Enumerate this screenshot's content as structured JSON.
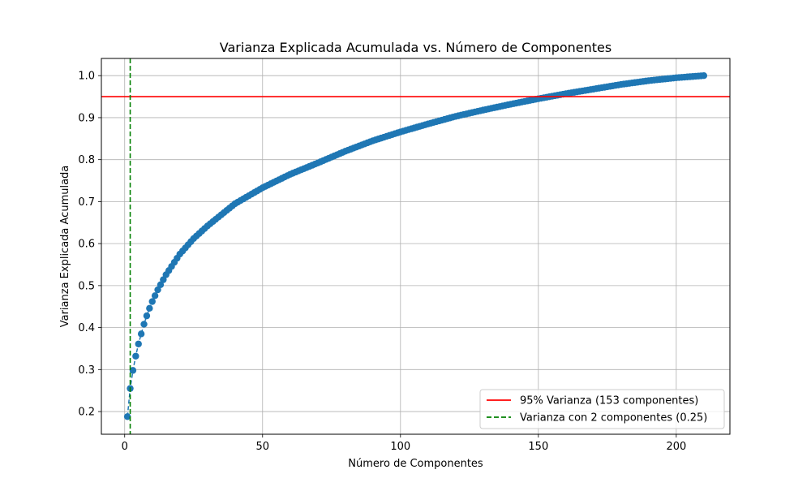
{
  "chart_data": {
    "type": "scatter",
    "title": "Varianza Explicada Acumulada vs. Número de Componentes",
    "xlabel": "Número de Componentes",
    "ylabel": "Varianza Explicada Acumulada",
    "xlim": [
      -8.45,
      219.45
    ],
    "ylim": [
      0.146,
      1.041
    ],
    "xticks": [
      0,
      50,
      100,
      150,
      200
    ],
    "yticks": [
      0.2,
      0.3,
      0.4,
      0.5,
      0.6,
      0.7,
      0.8,
      0.9,
      1.0
    ],
    "xtick_labels": [
      "0",
      "50",
      "100",
      "150",
      "200"
    ],
    "ytick_labels": [
      "0.2",
      "0.3",
      "0.4",
      "0.5",
      "0.6",
      "0.7",
      "0.8",
      "0.9",
      "1.0"
    ],
    "grid": true,
    "legend_position": "lower-right",
    "series": [
      {
        "kind": "scatter-line",
        "color": "#1f77b4",
        "line_style": "dashed",
        "x_start": 1,
        "x_end": 210,
        "anchor_points": [
          [
            1,
            0.188
          ],
          [
            2,
            0.255
          ],
          [
            3,
            0.298
          ],
          [
            4,
            0.332
          ],
          [
            5,
            0.361
          ],
          [
            6,
            0.385
          ],
          [
            7,
            0.408
          ],
          [
            8,
            0.428
          ],
          [
            9,
            0.446
          ],
          [
            10,
            0.462
          ],
          [
            12,
            0.49
          ],
          [
            15,
            0.526
          ],
          [
            20,
            0.575
          ],
          [
            25,
            0.612
          ],
          [
            30,
            0.642
          ],
          [
            40,
            0.695
          ],
          [
            50,
            0.733
          ],
          [
            60,
            0.765
          ],
          [
            70,
            0.792
          ],
          [
            80,
            0.82
          ],
          [
            90,
            0.845
          ],
          [
            100,
            0.866
          ],
          [
            110,
            0.885
          ],
          [
            120,
            0.903
          ],
          [
            130,
            0.918
          ],
          [
            140,
            0.932
          ],
          [
            150,
            0.945
          ],
          [
            160,
            0.957
          ],
          [
            170,
            0.968
          ],
          [
            180,
            0.979
          ],
          [
            190,
            0.988
          ],
          [
            200,
            0.995
          ],
          [
            210,
            1.0
          ]
        ]
      }
    ],
    "reference_lines": [
      {
        "orientation": "horizontal",
        "value": 0.95,
        "color": "#ff0000",
        "style": "solid",
        "label": "95% Varianza (153 componentes)"
      },
      {
        "orientation": "vertical",
        "value": 2,
        "color": "#008000",
        "style": "dashed",
        "label": "Varianza con 2 componentes (0.25)"
      }
    ]
  }
}
